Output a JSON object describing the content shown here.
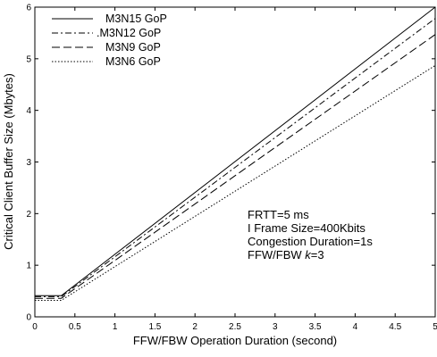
{
  "chart_data": {
    "type": "line",
    "xlabel": "FFW/FBW Operation Duration (second)",
    "ylabel": "Critical Client Buffer Size (Mbytes)",
    "xlim": [
      0,
      5
    ],
    "ylim": [
      0,
      6
    ],
    "xticks": [
      "0",
      "0.5",
      "1",
      "1.5",
      "2",
      "2.5",
      "3",
      "3.5",
      "4",
      "4.5",
      "5"
    ],
    "yticks": [
      "0",
      "1",
      "2",
      "3",
      "4",
      "5",
      "6"
    ],
    "grid": false,
    "legend_position": "top-left",
    "series": [
      {
        "name": "M3N15 GoP",
        "style": "solid",
        "x": [
          0,
          0.33,
          5
        ],
        "y": [
          0.41,
          0.41,
          6.0
        ]
      },
      {
        "name": ".M3N12 GoP",
        "style": "dashdot",
        "x": [
          0,
          0.33,
          5
        ],
        "y": [
          0.39,
          0.39,
          5.78
        ]
      },
      {
        "name": "M3N9 GoP",
        "style": "longdash",
        "x": [
          0,
          0.33,
          5
        ],
        "y": [
          0.36,
          0.36,
          5.47
        ]
      },
      {
        "name": "M3N6 GoP",
        "style": "dotted",
        "x": [
          0,
          0.33,
          5
        ],
        "y": [
          0.32,
          0.32,
          4.87
        ]
      }
    ],
    "annotations": [
      "FRTT=5 ms",
      "I Frame Size=400Kbits",
      "Congestion Duration=1s",
      "FFW/FBW k=3"
    ],
    "annotation_parts": {
      "last_prefix": "FFW/FBW ",
      "last_italic": "k",
      "last_suffix": "=3"
    }
  }
}
